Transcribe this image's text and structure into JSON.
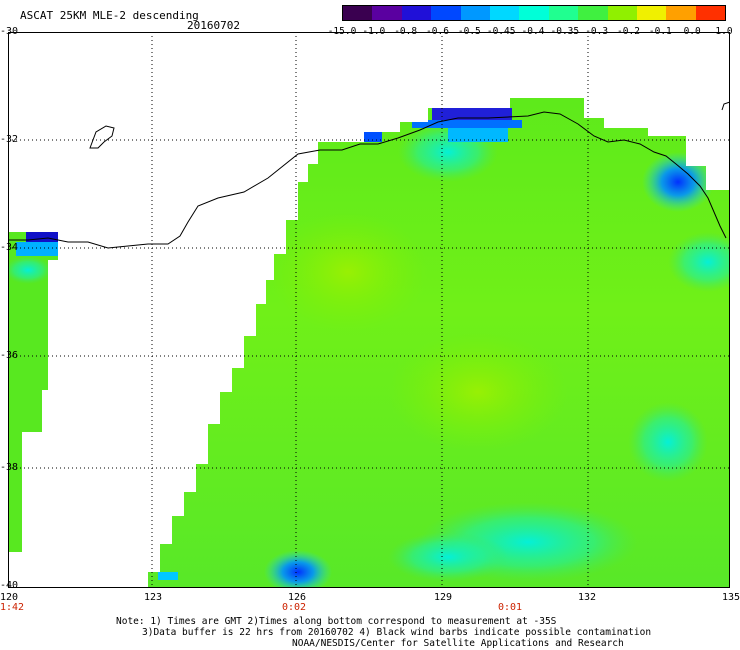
{
  "header": {
    "title": "ASCAT 25KM MLE-2 descending",
    "date": "20160702"
  },
  "colorbar": {
    "labels": [
      "-15.0",
      "-1.0",
      "-0.8",
      "-0.6",
      "-0.5",
      "-0.45",
      "-0.4",
      "-0.35",
      "-0.3",
      "-0.2",
      "-0.1",
      "0.0",
      "1.0"
    ],
    "colors": [
      "#3a0050",
      "#5a00a0",
      "#2010d8",
      "#0048ff",
      "#0098ff",
      "#00d8ff",
      "#00ffd8",
      "#20ff90",
      "#40f040",
      "#90f000",
      "#f0f000",
      "#ffa000",
      "#ff3000"
    ]
  },
  "axes": {
    "y_labels": [
      "-30",
      "-32",
      "-34",
      "-36",
      "-38",
      "-40"
    ],
    "x_labels": [
      "120",
      "123",
      "126",
      "129",
      "132",
      "135"
    ],
    "time_labels": [
      "1:42",
      "0:02",
      "0:01"
    ]
  },
  "note": {
    "line1": "Note: 1) Times are GMT 2)Times along bottom correspond to measurement at -35S",
    "line2": "3)Data buffer is 22 hrs from 20160702 4) Black wind barbs indicate possible contamination",
    "line3": "NOAA/NESDIS/Center for Satellite Applications and Research"
  }
}
